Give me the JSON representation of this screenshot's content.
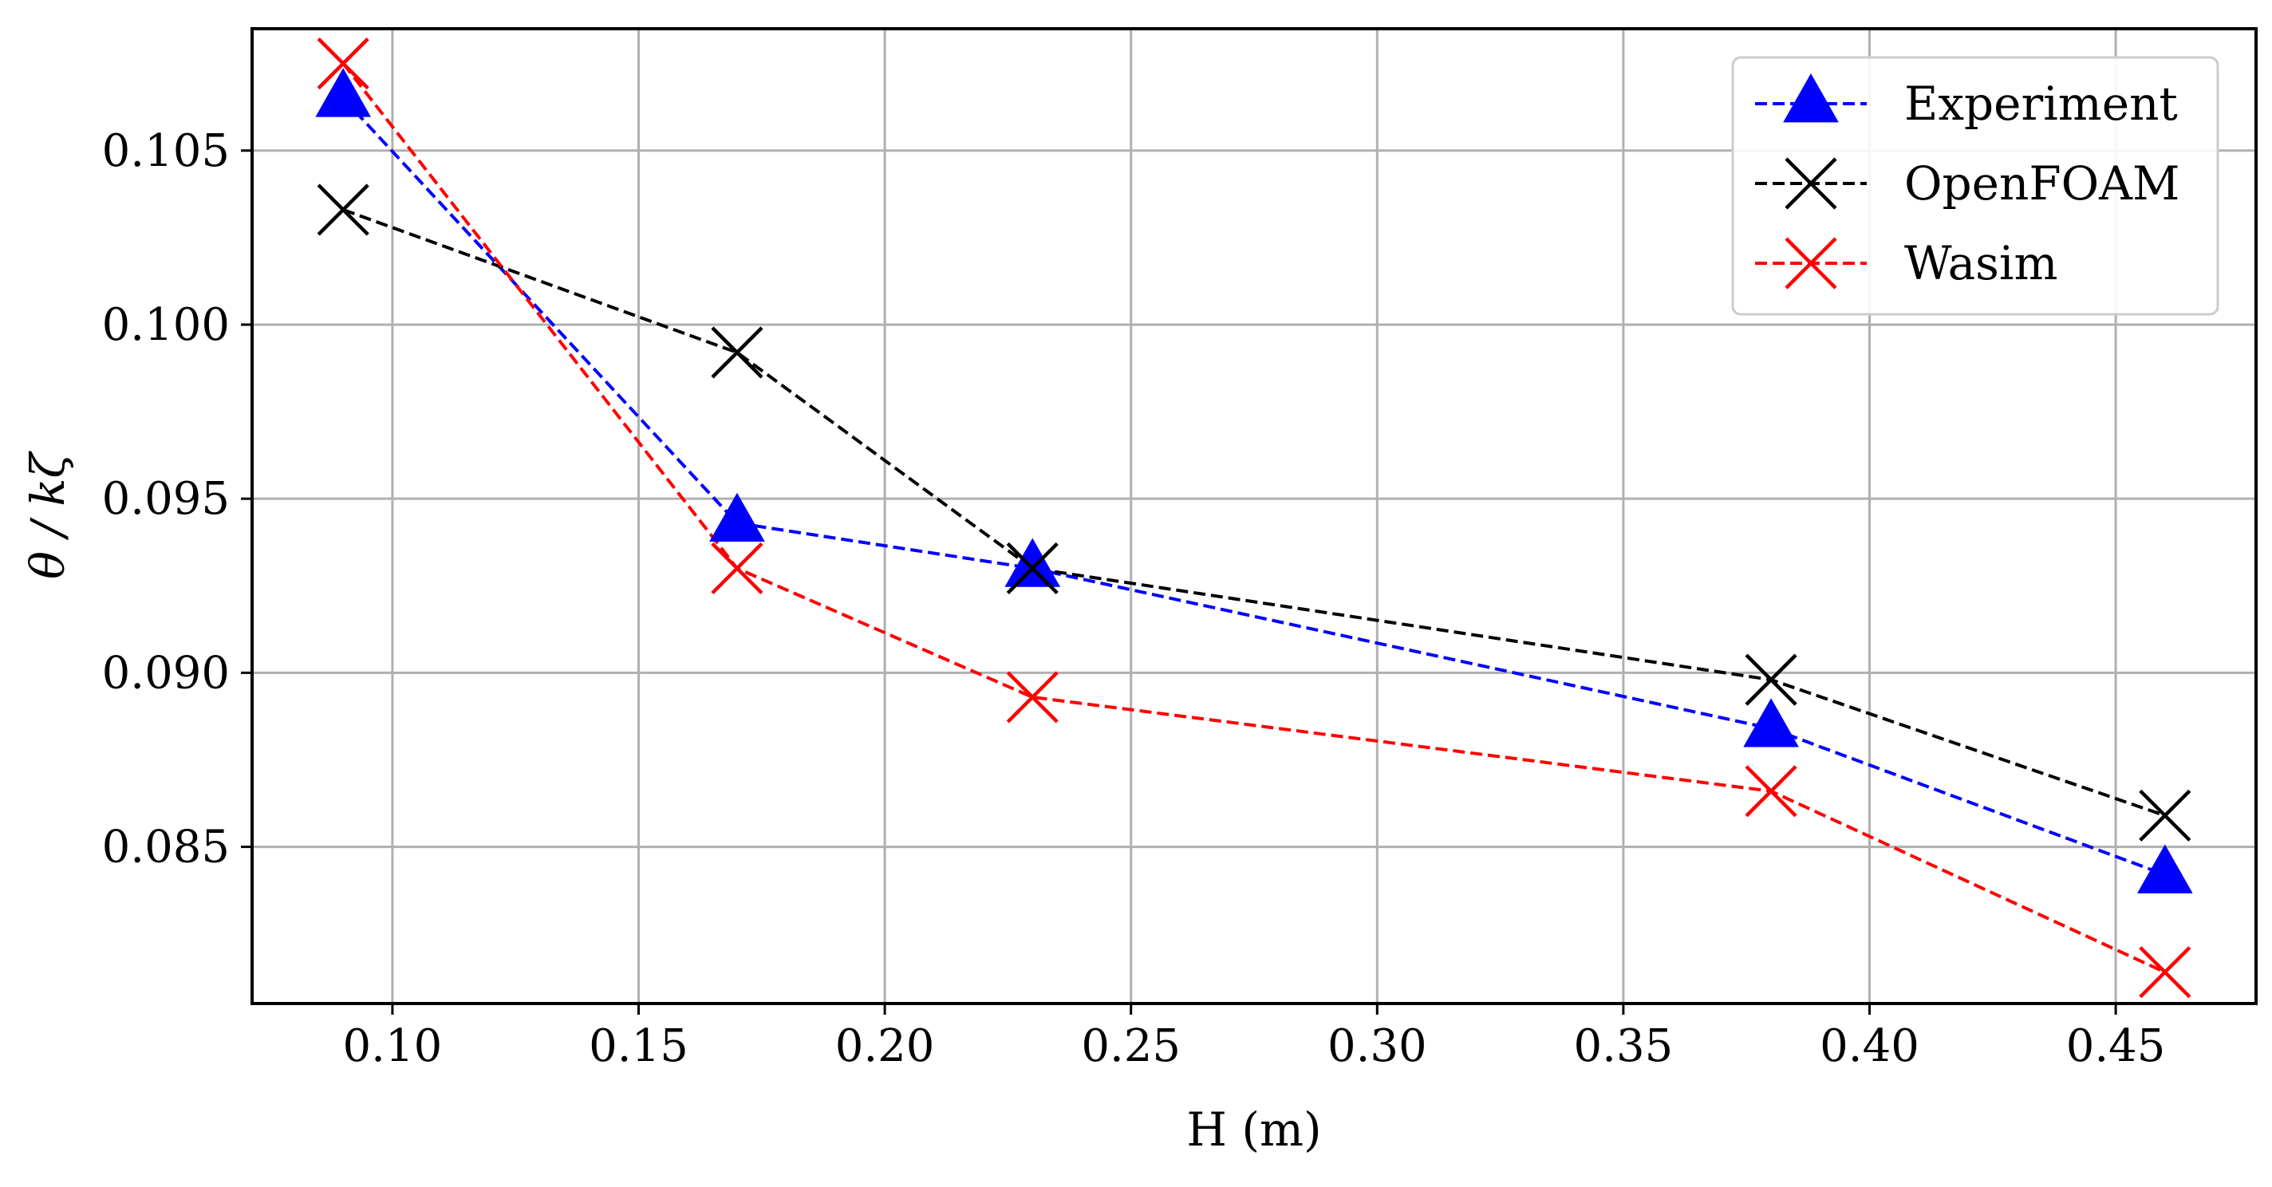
{
  "chart_data": {
    "type": "line",
    "title": "",
    "xlabel": "H (m)",
    "ylabel": "θ / kζ",
    "x": [
      0.09,
      0.17,
      0.23,
      0.38,
      0.46
    ],
    "xlim": [
      0.0715,
      0.4785
    ],
    "ylim": [
      0.0805,
      0.1085
    ],
    "xticks": [
      0.1,
      0.15,
      0.2,
      0.25,
      0.3,
      0.35,
      0.4,
      0.45
    ],
    "xtick_labels": [
      "0.10",
      "0.15",
      "0.20",
      "0.25",
      "0.30",
      "0.35",
      "0.40",
      "0.45"
    ],
    "yticks": [
      0.085,
      0.09,
      0.095,
      0.1,
      0.105
    ],
    "ytick_labels": [
      "0.085",
      "0.090",
      "0.095",
      "0.100",
      "0.105"
    ],
    "grid": true,
    "legend_position": "top-right",
    "series": [
      {
        "name": "Experiment",
        "marker": "triangle",
        "color": "#0000ff",
        "linestyle": "dashed",
        "values": [
          0.1065,
          0.0943,
          0.093,
          0.0884,
          0.0842
        ]
      },
      {
        "name": "OpenFOAM",
        "marker": "x",
        "color": "#000000",
        "linestyle": "dashed",
        "values": [
          0.1033,
          0.0992,
          0.093,
          0.0898,
          0.0859
        ]
      },
      {
        "name": "Wasim",
        "marker": "x",
        "color": "#ff0000",
        "linestyle": "dashed",
        "values": [
          0.1075,
          0.093,
          0.0893,
          0.0866,
          0.0814
        ]
      }
    ]
  }
}
